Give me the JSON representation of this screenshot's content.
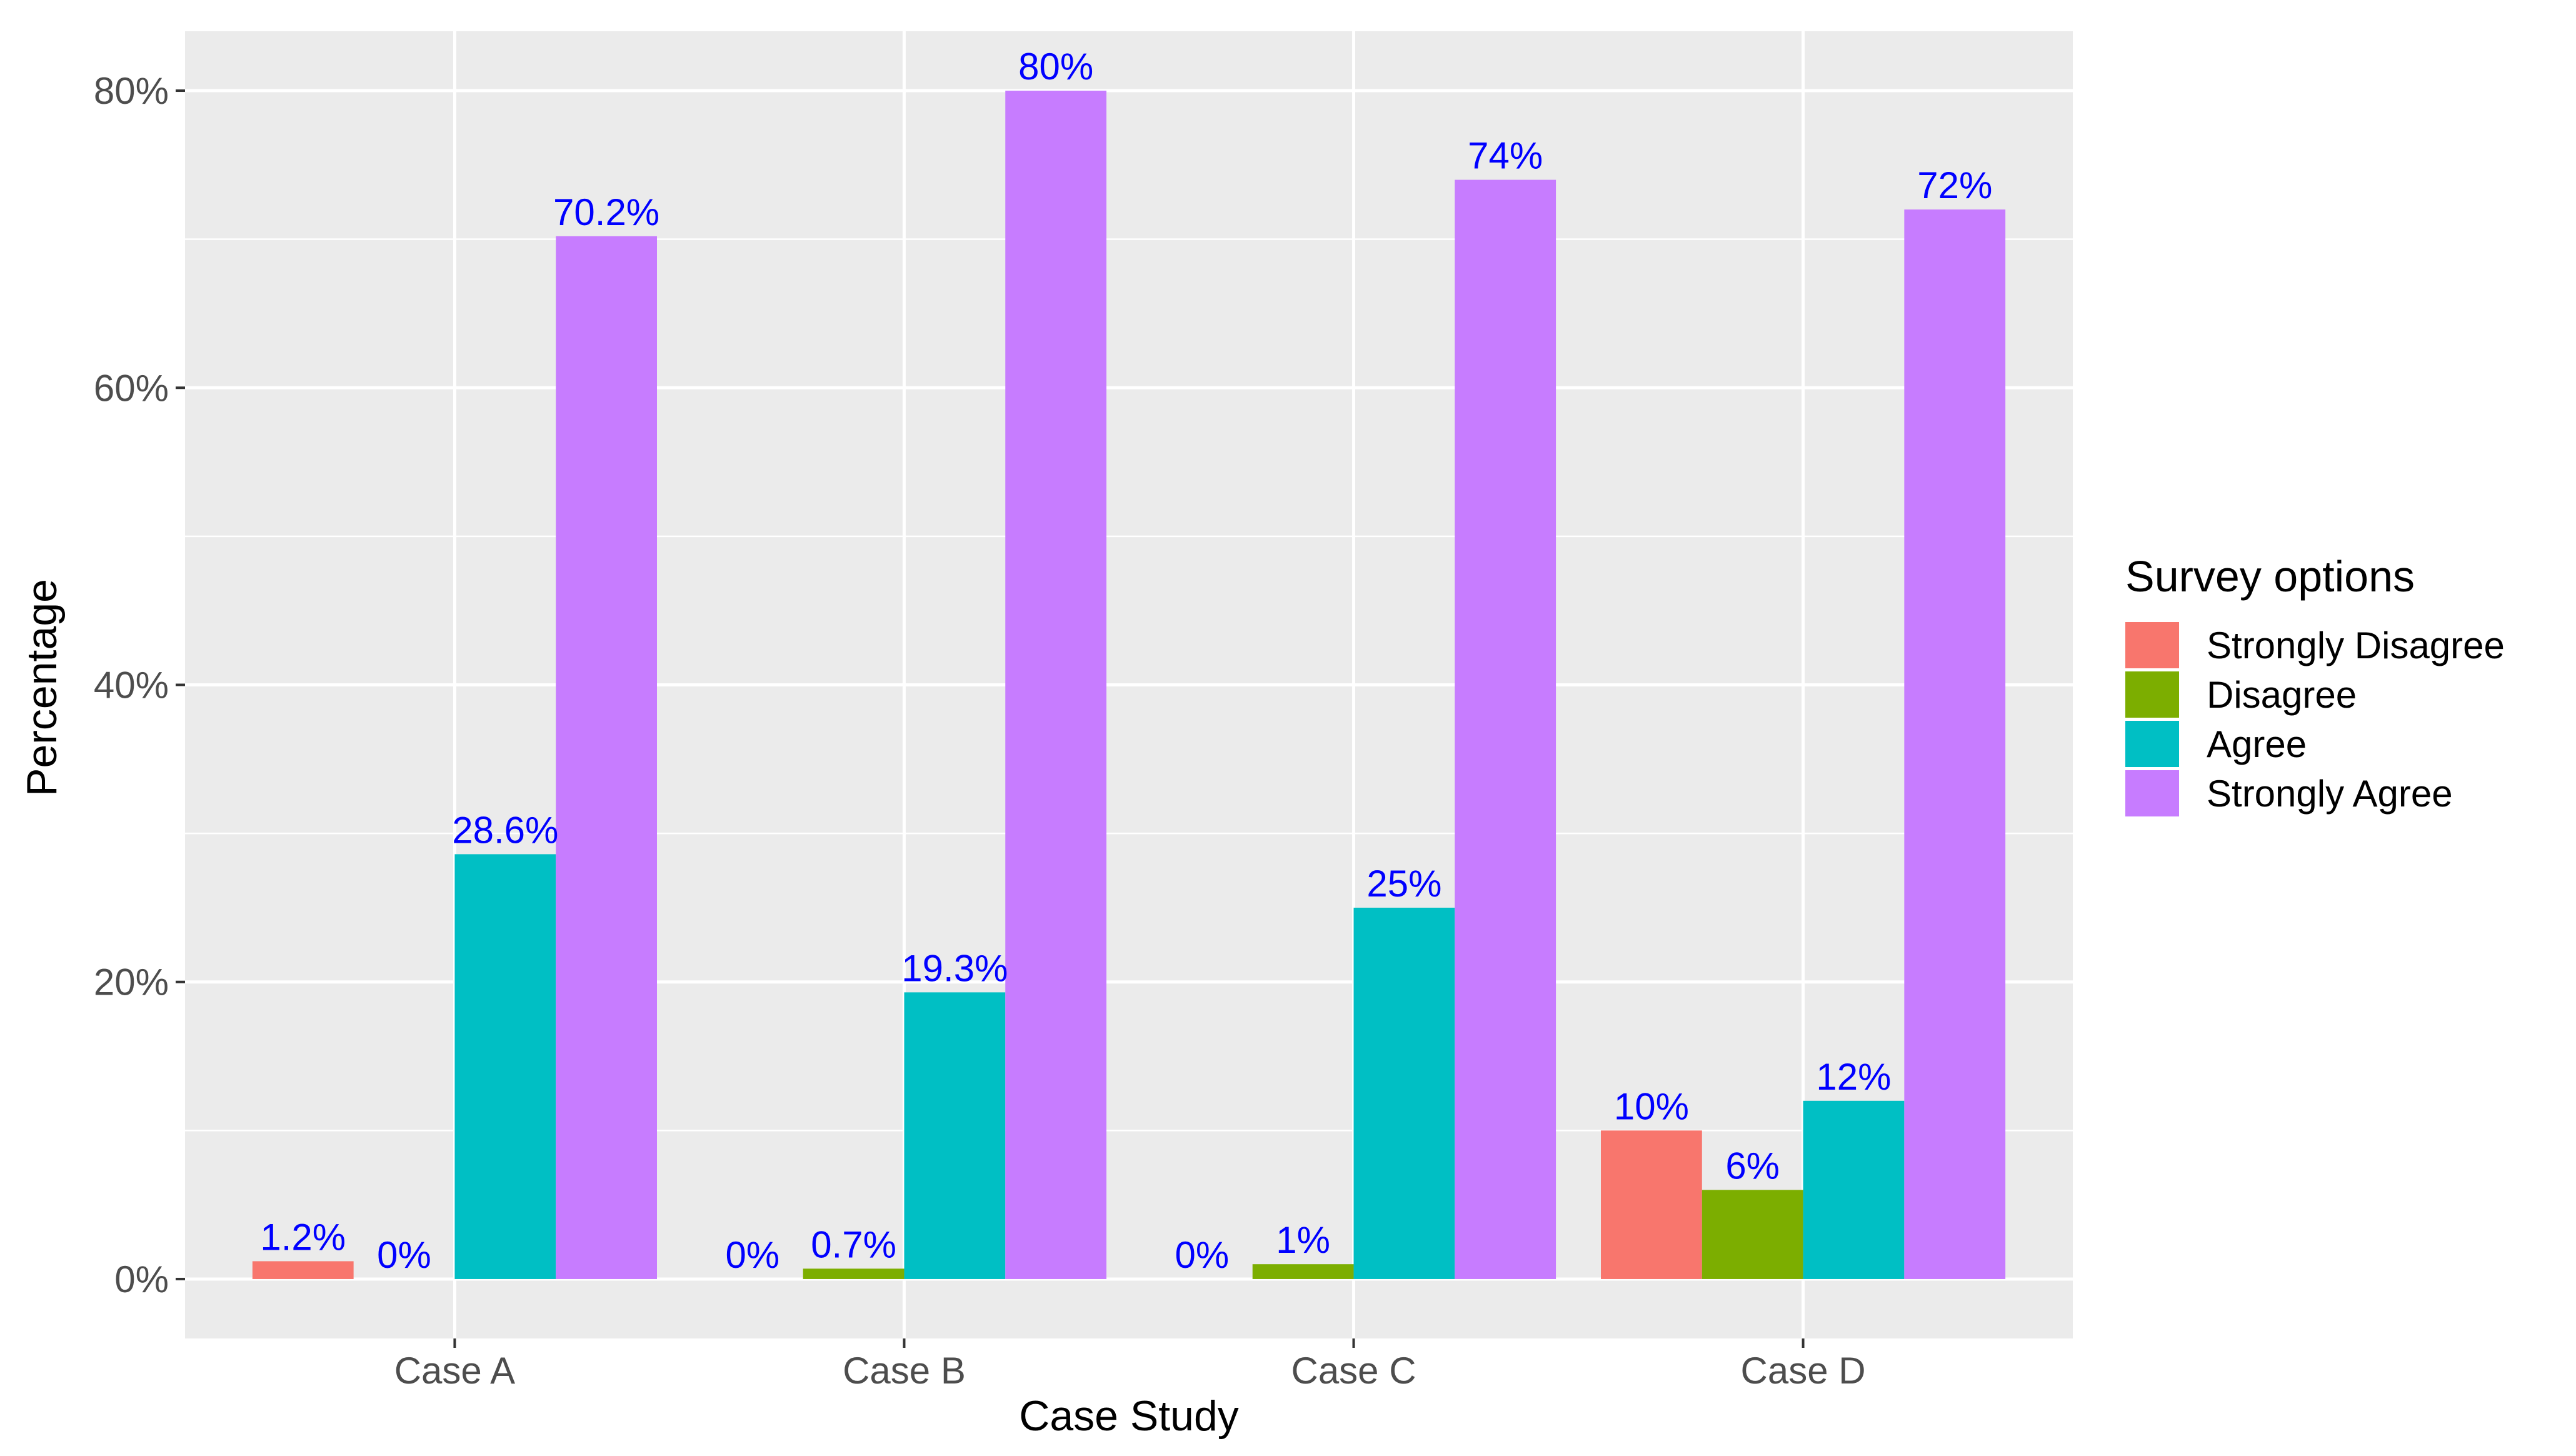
{
  "chart_data": {
    "type": "bar",
    "title": "",
    "xlabel": "Case Study",
    "ylabel": "Percentage",
    "categories": [
      "Case A",
      "Case B",
      "Case C",
      "Case D"
    ],
    "series": [
      {
        "name": "Strongly Disagree",
        "color": "#F8766D",
        "values": [
          1.2,
          0,
          0,
          10
        ]
      },
      {
        "name": "Disagree",
        "color": "#7CAE00",
        "values": [
          0,
          0.7,
          1,
          6
        ]
      },
      {
        "name": "Agree",
        "color": "#00BFC4",
        "values": [
          28.6,
          19.3,
          25,
          12
        ]
      },
      {
        "name": "Strongly Agree",
        "color": "#C77CFF",
        "values": [
          70.2,
          80,
          74,
          72
        ]
      }
    ],
    "data_labels": [
      [
        "1.2%",
        "0%",
        "0%",
        "10%"
      ],
      [
        "0%",
        "0.7%",
        "1%",
        "6%"
      ],
      [
        "28.6%",
        "19.3%",
        "25%",
        "12%"
      ],
      [
        "70.2%",
        "80%",
        "74%",
        "72%"
      ]
    ],
    "y_ticks": [
      0,
      20,
      40,
      60,
      80
    ],
    "y_tick_labels": [
      "0%",
      "20%",
      "40%",
      "60%",
      "80%"
    ],
    "ylim": [
      -4,
      84
    ],
    "grid": true,
    "legend": {
      "title": "Survey options",
      "position": "right"
    },
    "colors": {
      "panel_background": "#EBEBEB",
      "grid_line": "#FFFFFF",
      "data_label_text": "#0000FF",
      "axis_text": "#4D4D4D",
      "axis_title": "#000000"
    }
  }
}
